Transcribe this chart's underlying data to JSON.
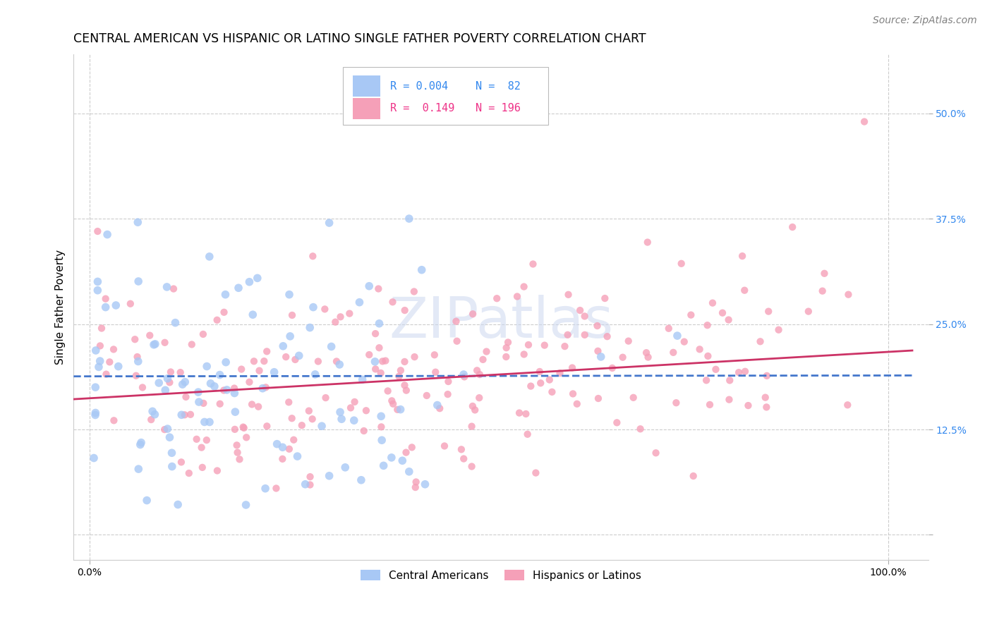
{
  "title": "CENTRAL AMERICAN VS HISPANIC OR LATINO SINGLE FATHER POVERTY CORRELATION CHART",
  "source": "Source: ZipAtlas.com",
  "ylabel": "Single Father Poverty",
  "yticks": [
    0.0,
    0.125,
    0.25,
    0.375,
    0.5
  ],
  "ytick_labels": [
    "",
    "12.5%",
    "25.0%",
    "37.5%",
    "50.0%"
  ],
  "series": [
    {
      "name": "Central Americans",
      "color": "#a8c8f5",
      "R": 0.004,
      "N": 82,
      "trend_color": "#4477cc",
      "trend_style": "--",
      "marker_size": 70
    },
    {
      "name": "Hispanics or Latinos",
      "color": "#f5a0b8",
      "R": 0.149,
      "N": 196,
      "trend_color": "#cc3366",
      "trend_style": "-",
      "marker_size": 55
    }
  ],
  "xlim": [
    -0.02,
    1.05
  ],
  "ylim": [
    -0.03,
    0.57
  ],
  "watermark": "ZIPatlas",
  "background_color": "#ffffff",
  "grid_color": "#cccccc",
  "grid_style": "--",
  "title_fontsize": 12.5,
  "source_fontsize": 10,
  "ylabel_fontsize": 11,
  "tick_fontsize": 10,
  "legend_fontsize": 11,
  "legend_text_color_blue": "#3388ee",
  "legend_text_color_pink": "#ee3388",
  "ytick_color": "#3388ee",
  "legend_R1": "R = 0.004",
  "legend_N1": "N =  82",
  "legend_R2": "R =  0.149",
  "legend_N2": "N = 196"
}
